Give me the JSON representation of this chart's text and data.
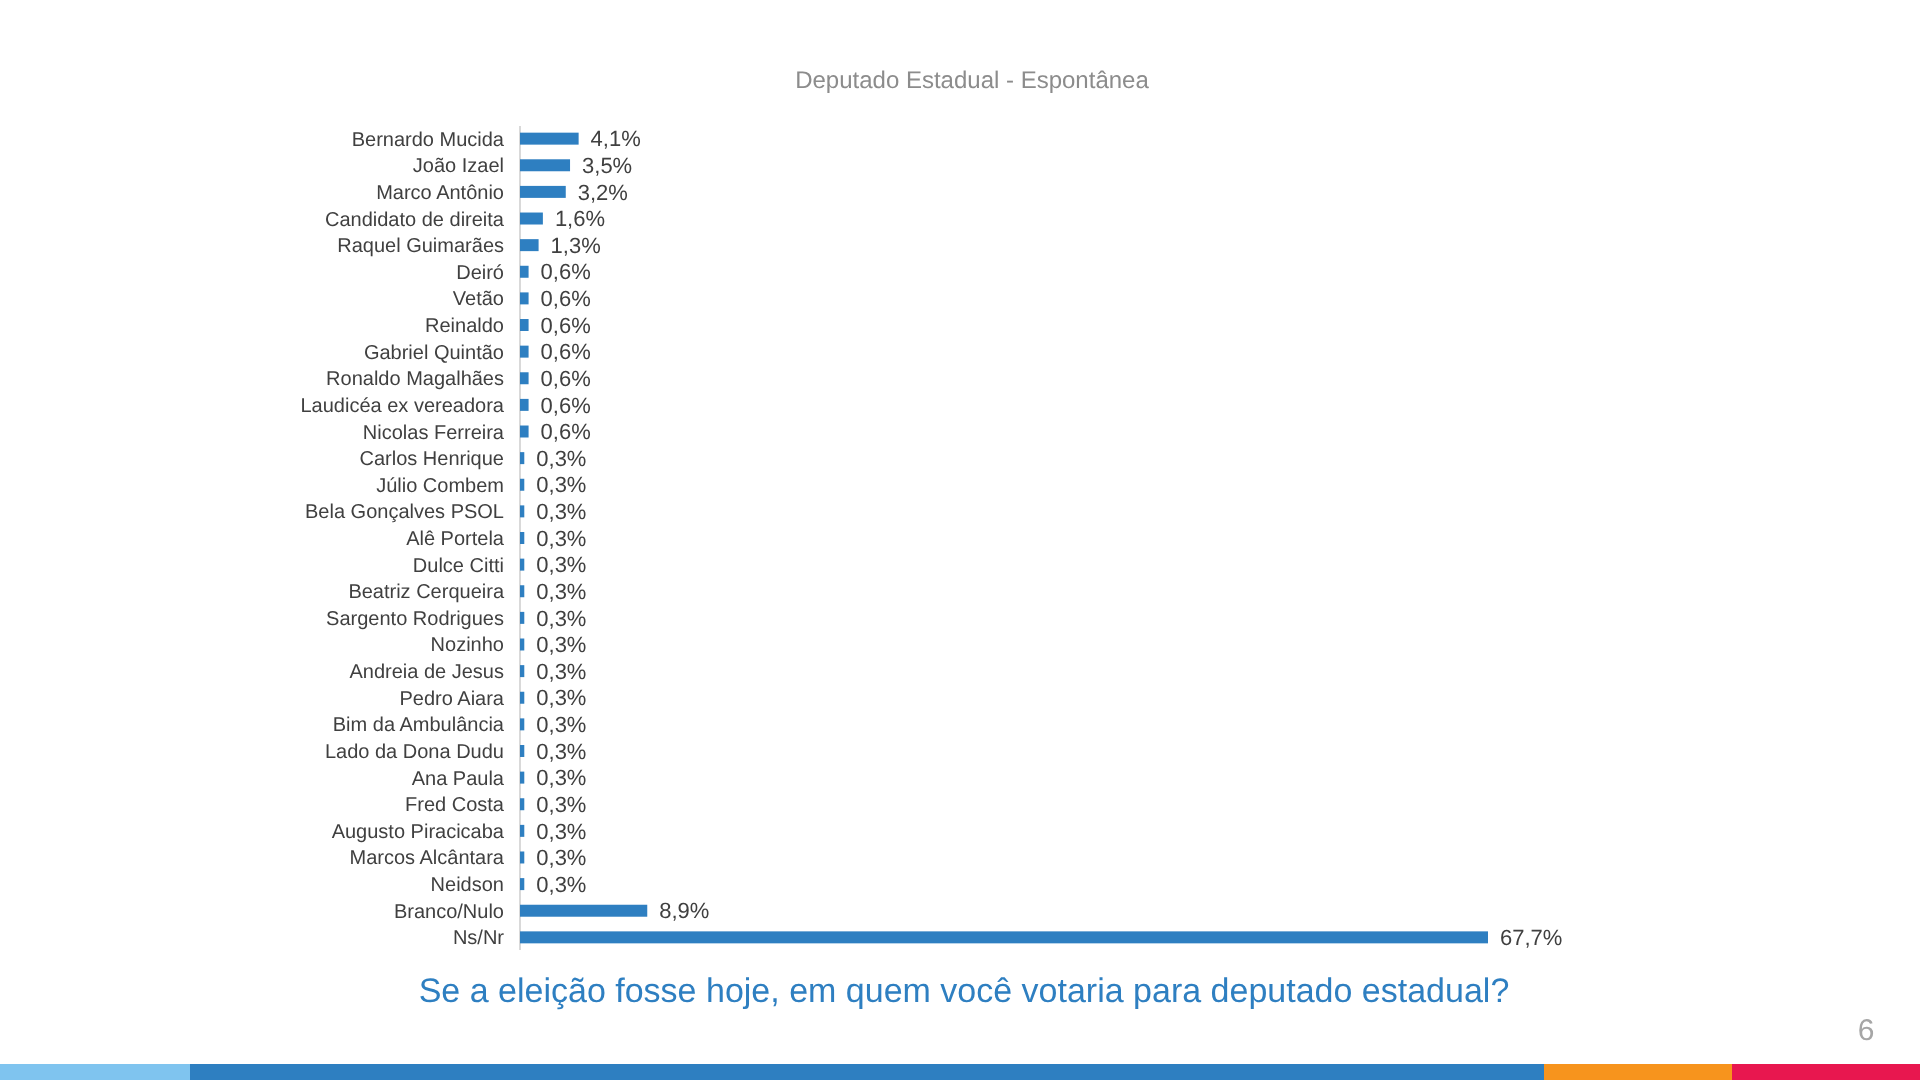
{
  "chart_data": {
    "type": "bar",
    "orientation": "horizontal",
    "title": "Deputado  Estadual - Espontânea",
    "categories": [
      "Bernardo Mucida",
      "João Izael",
      "Marco Antônio",
      "Candidato de direita",
      "Raquel Guimarães",
      "Deiró",
      "Vetão",
      "Reinaldo",
      "Gabriel Quintão",
      "Ronaldo Magalhães",
      "Laudicéa ex vereadora",
      "Nicolas Ferreira",
      "Carlos Henrique",
      "Júlio Combem",
      "Bela Gonçalves PSOL",
      "Alê Portela",
      "Dulce Citti",
      "Beatriz Cerqueira",
      "Sargento Rodrigues",
      "Nozinho",
      "Andreia de Jesus",
      "Pedro Aiara",
      "Bim da Ambulância",
      "Lado da Dona Dudu",
      "Ana Paula",
      "Fred Costa",
      "Augusto Piracicaba",
      "Marcos Alcântara",
      "Neidson",
      "Branco/Nulo",
      "Ns/Nr"
    ],
    "values": [
      4.1,
      3.5,
      3.2,
      1.6,
      1.3,
      0.6,
      0.6,
      0.6,
      0.6,
      0.6,
      0.6,
      0.6,
      0.3,
      0.3,
      0.3,
      0.3,
      0.3,
      0.3,
      0.3,
      0.3,
      0.3,
      0.3,
      0.3,
      0.3,
      0.3,
      0.3,
      0.3,
      0.3,
      0.3,
      8.9,
      67.7
    ],
    "value_labels": [
      "4,1%",
      "3,5%",
      "3,2%",
      "1,6%",
      "1,3%",
      "0,6%",
      "0,6%",
      "0,6%",
      "0,6%",
      "0,6%",
      "0,6%",
      "0,6%",
      "0,3%",
      "0,3%",
      "0,3%",
      "0,3%",
      "0,3%",
      "0,3%",
      "0,3%",
      "0,3%",
      "0,3%",
      "0,3%",
      "0,3%",
      "0,3%",
      "0,3%",
      "0,3%",
      "0,3%",
      "0,3%",
      "0,3%",
      "8,9%",
      "67,7%"
    ],
    "color": "#2e7fc1",
    "xlim": [
      0,
      67.7
    ],
    "tick_labels": "y",
    "annotations": [
      "Se a eleição fosse hoje, em quem você votaria para deputado estadual?",
      "6"
    ]
  }
}
